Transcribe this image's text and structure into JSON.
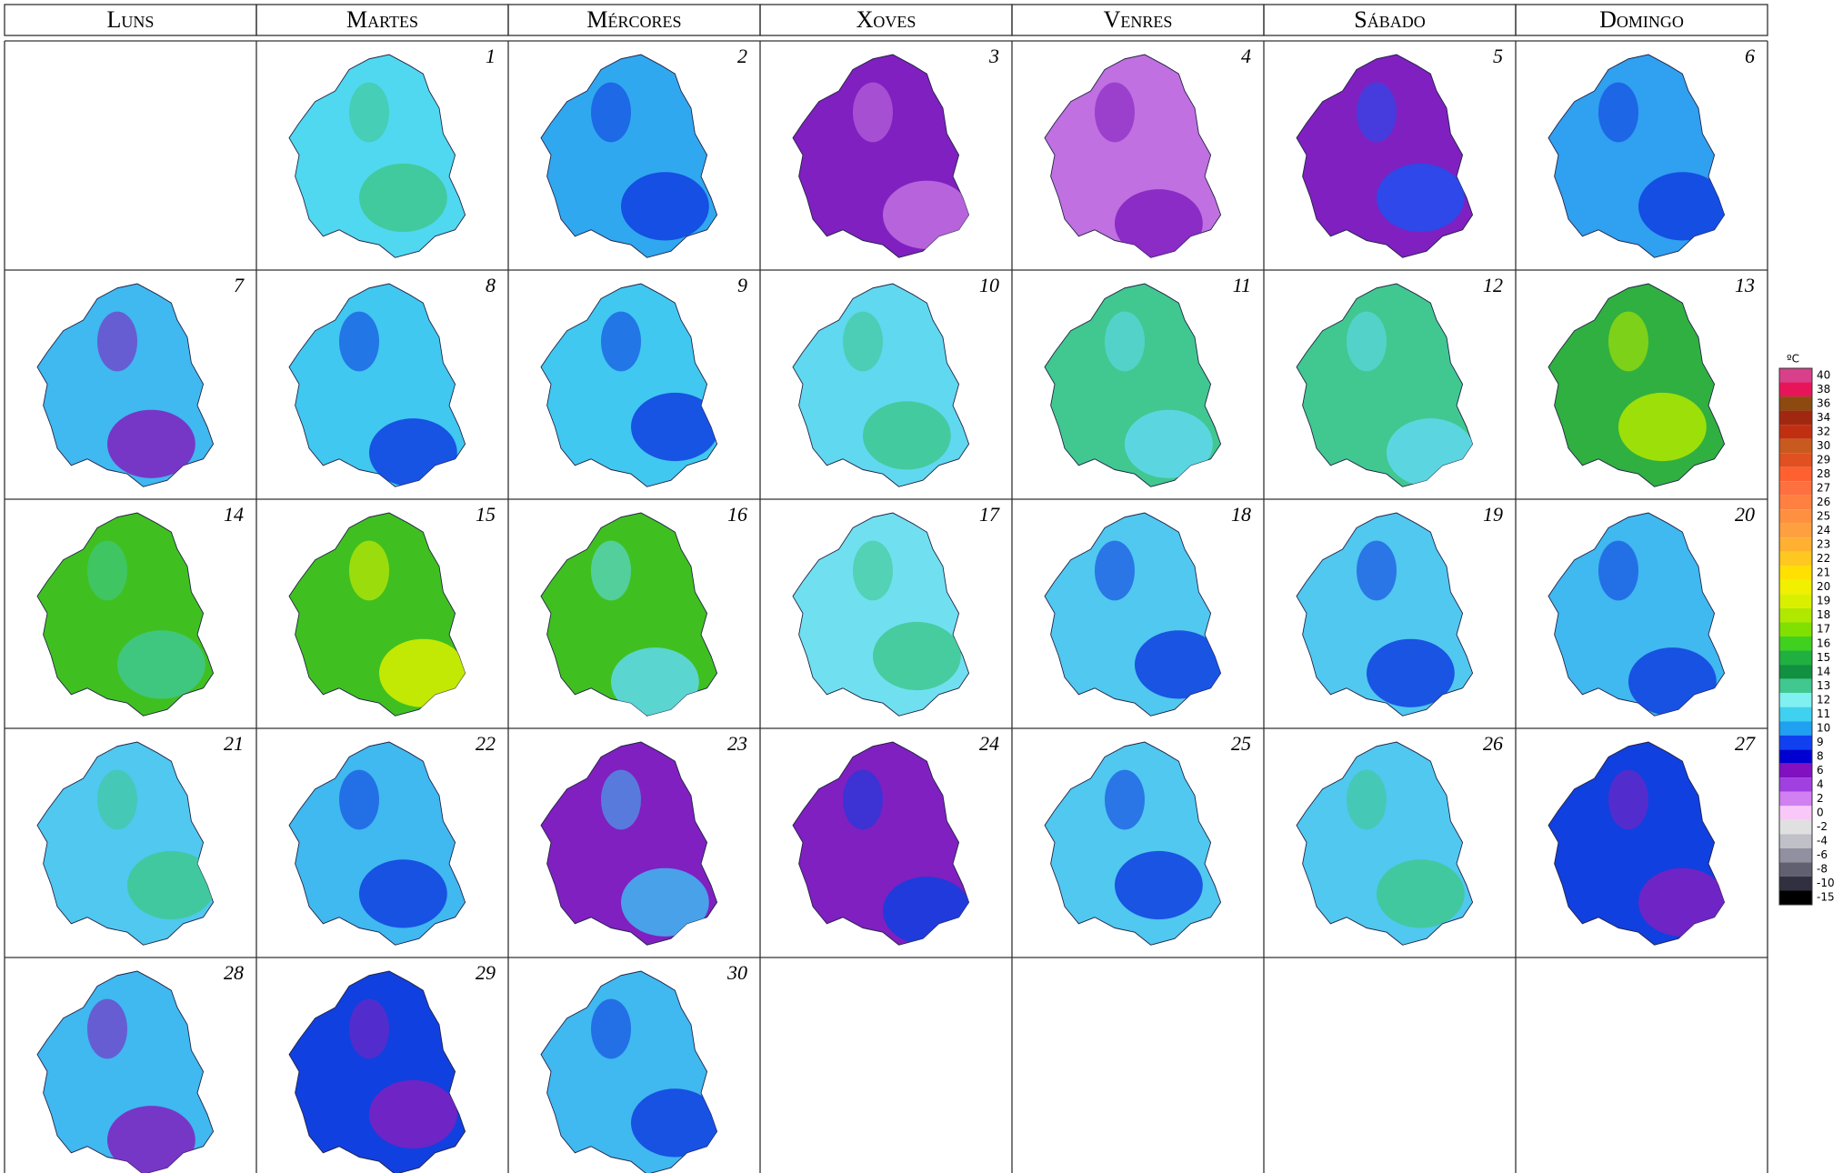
{
  "header": {
    "weekdays": [
      "Luns",
      "Martes",
      "Mércores",
      "Xoves",
      "Venres",
      "Sábado",
      "Domingo"
    ]
  },
  "calendar": {
    "days": [
      {
        "label": "1",
        "base": "#50d8f0",
        "accent": "#40c890"
      },
      {
        "label": "2",
        "base": "#30a8f0",
        "accent": "#1040e0"
      },
      {
        "label": "3",
        "base": "#8020c0",
        "accent": "#c070e0"
      },
      {
        "label": "4",
        "base": "#c070e0",
        "accent": "#8020c0"
      },
      {
        "label": "5",
        "base": "#8020c0",
        "accent": "#2050f0"
      },
      {
        "label": "6",
        "base": "#30a0f0",
        "accent": "#1040e0"
      },
      {
        "label": "7",
        "base": "#40b8f0",
        "accent": "#8020c0"
      },
      {
        "label": "8",
        "base": "#40c8f0",
        "accent": "#1040e0"
      },
      {
        "label": "9",
        "base": "#40c8f0",
        "accent": "#1040e0"
      },
      {
        "label": "10",
        "base": "#60d8f0",
        "accent": "#40c890"
      },
      {
        "label": "11",
        "base": "#40c890",
        "accent": "#60d8f0"
      },
      {
        "label": "12",
        "base": "#40c890",
        "accent": "#60d8f0"
      },
      {
        "label": "13",
        "base": "#30b040",
        "accent": "#b0e800"
      },
      {
        "label": "14",
        "base": "#40c020",
        "accent": "#40c890"
      },
      {
        "label": "15",
        "base": "#40c020",
        "accent": "#d8f000"
      },
      {
        "label": "16",
        "base": "#40c020",
        "accent": "#60d8f0"
      },
      {
        "label": "17",
        "base": "#70e0f0",
        "accent": "#40c890"
      },
      {
        "label": "18",
        "base": "#50c8f0",
        "accent": "#1040e0"
      },
      {
        "label": "19",
        "base": "#50c8f0",
        "accent": "#1040e0"
      },
      {
        "label": "20",
        "base": "#40b8f0",
        "accent": "#1040e0"
      },
      {
        "label": "21",
        "base": "#50c8f0",
        "accent": "#40c890"
      },
      {
        "label": "22",
        "base": "#40b8f0",
        "accent": "#1040e0"
      },
      {
        "label": "23",
        "base": "#8020c0",
        "accent": "#40b8f0"
      },
      {
        "label": "24",
        "base": "#8020c0",
        "accent": "#1040e0"
      },
      {
        "label": "25",
        "base": "#50c8f0",
        "accent": "#1040e0"
      },
      {
        "label": "26",
        "base": "#50c8f0",
        "accent": "#40c890"
      },
      {
        "label": "27",
        "base": "#1040e0",
        "accent": "#8020c0"
      },
      {
        "label": "28",
        "base": "#40b8f0",
        "accent": "#8020c0"
      },
      {
        "label": "29",
        "base": "#1040e0",
        "accent": "#8020c0"
      },
      {
        "label": "30",
        "base": "#40b8f0",
        "accent": "#1040e0"
      }
    ]
  },
  "legend": {
    "unit": "ºC",
    "levels": [
      {
        "value": 40,
        "color": "#d8408a"
      },
      {
        "value": 38,
        "color": "#e8145a"
      },
      {
        "value": 36,
        "color": "#8c4a10"
      },
      {
        "value": 34,
        "color": "#a02810"
      },
      {
        "value": 32,
        "color": "#c03010"
      },
      {
        "value": 30,
        "color": "#c85a20"
      },
      {
        "value": 29,
        "color": "#e05020"
      },
      {
        "value": 28,
        "color": "#ff6030"
      },
      {
        "value": 27,
        "color": "#ff7040"
      },
      {
        "value": 26,
        "color": "#ff8040"
      },
      {
        "value": 25,
        "color": "#ff9040"
      },
      {
        "value": 24,
        "color": "#ffa040"
      },
      {
        "value": 23,
        "color": "#ffb030"
      },
      {
        "value": 22,
        "color": "#ffc820"
      },
      {
        "value": 21,
        "color": "#ffe000"
      },
      {
        "value": 20,
        "color": "#f0f000"
      },
      {
        "value": 19,
        "color": "#d8f000"
      },
      {
        "value": 18,
        "color": "#b0e800"
      },
      {
        "value": 17,
        "color": "#80e000"
      },
      {
        "value": 16,
        "color": "#40d020"
      },
      {
        "value": 15,
        "color": "#20b040"
      },
      {
        "value": 14,
        "color": "#109040"
      },
      {
        "value": 13,
        "color": "#40c890"
      },
      {
        "value": 12,
        "color": "#80f0f0"
      },
      {
        "value": 11,
        "color": "#40d0f0"
      },
      {
        "value": 10,
        "color": "#20a0f0"
      },
      {
        "value": 9,
        "color": "#1040f0"
      },
      {
        "value": 8,
        "color": "#0000d0"
      },
      {
        "value": 6,
        "color": "#8010c0"
      },
      {
        "value": 4,
        "color": "#a040e0"
      },
      {
        "value": 2,
        "color": "#d080f0"
      },
      {
        "value": 0,
        "color": "#f8c8f8"
      },
      {
        "value": -2,
        "color": "#e0e0e0"
      },
      {
        "value": -4,
        "color": "#c0c0c8"
      },
      {
        "value": -6,
        "color": "#9090a0"
      },
      {
        "value": -8,
        "color": "#606070"
      },
      {
        "value": -10,
        "color": "#303040"
      },
      {
        "value": -15,
        "color": "#000000"
      }
    ]
  }
}
